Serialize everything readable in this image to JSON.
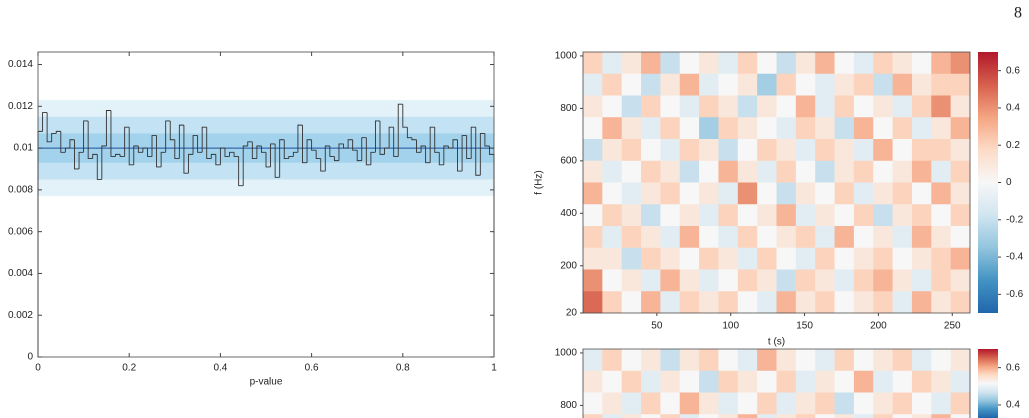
{
  "page_number": "8",
  "chart_data": [
    {
      "type": "histogram",
      "xlabel": "p-value",
      "bins": [
        0,
        0.01,
        0.02,
        0.03,
        0.04,
        0.05,
        0.06,
        0.07,
        0.08,
        0.09,
        0.1,
        0.11,
        0.12,
        0.13,
        0.14,
        0.15,
        0.16,
        0.17,
        0.18,
        0.19,
        0.2,
        0.21,
        0.22,
        0.23,
        0.24,
        0.25,
        0.26,
        0.27,
        0.28,
        0.29,
        0.3,
        0.31,
        0.32,
        0.33,
        0.34,
        0.35,
        0.36,
        0.37,
        0.38,
        0.39,
        0.4,
        0.41,
        0.42,
        0.43,
        0.44,
        0.45,
        0.46,
        0.47,
        0.48,
        0.49,
        0.5,
        0.51,
        0.52,
        0.53,
        0.54,
        0.55,
        0.56,
        0.57,
        0.58,
        0.59,
        0.6,
        0.61,
        0.62,
        0.63,
        0.64,
        0.65,
        0.66,
        0.67,
        0.68,
        0.69,
        0.7,
        0.71,
        0.72,
        0.73,
        0.74,
        0.75,
        0.76,
        0.77,
        0.78,
        0.79,
        0.8,
        0.81,
        0.82,
        0.83,
        0.84,
        0.85,
        0.86,
        0.87,
        0.88,
        0.89,
        0.9,
        0.91,
        0.92,
        0.93,
        0.94,
        0.95,
        0.96,
        0.97,
        0.98,
        0.99,
        1
      ],
      "values": [
        0.0108,
        0.0117,
        0.0103,
        0.0107,
        0.0108,
        0.0098,
        0.01,
        0.0104,
        0.009,
        0.0098,
        0.0113,
        0.0095,
        0.0097,
        0.0085,
        0.0101,
        0.0118,
        0.0096,
        0.0097,
        0.0096,
        0.011,
        0.0092,
        0.0101,
        0.0098,
        0.01,
        0.0096,
        0.0106,
        0.0091,
        0.0098,
        0.0113,
        0.0104,
        0.0095,
        0.0111,
        0.0088,
        0.0097,
        0.0106,
        0.0098,
        0.011,
        0.0095,
        0.0097,
        0.0092,
        0.01,
        0.0096,
        0.0098,
        0.0096,
        0.0082,
        0.0101,
        0.0103,
        0.0095,
        0.0101,
        0.0098,
        0.0091,
        0.0102,
        0.0086,
        0.0104,
        0.0095,
        0.0096,
        0.0098,
        0.0111,
        0.0093,
        0.0104,
        0.0099,
        0.0095,
        0.0089,
        0.0101,
        0.0096,
        0.0094,
        0.0102,
        0.01,
        0.0104,
        0.0099,
        0.0094,
        0.0105,
        0.0092,
        0.0098,
        0.0113,
        0.0097,
        0.01,
        0.011,
        0.0096,
        0.0121,
        0.011,
        0.0105,
        0.0104,
        0.0098,
        0.0101,
        0.0093,
        0.011,
        0.0098,
        0.0092,
        0.0101,
        0.01,
        0.0104,
        0.0089,
        0.0106,
        0.0095,
        0.011,
        0.0087,
        0.0107,
        0.0101,
        0.0097
      ],
      "color": "#333333",
      "xlim": [
        0,
        1
      ],
      "ylim": [
        0,
        0.0146
      ],
      "xticks": [
        0,
        0.2,
        0.4,
        0.6,
        0.8,
        1
      ],
      "yticks": [
        0,
        0.002,
        0.004,
        0.006,
        0.008,
        0.01,
        0.012,
        0.014
      ],
      "bands": [
        {
          "low": 0.0077,
          "high": 0.0123,
          "color": "#e3f1f9"
        },
        {
          "low": 0.0085,
          "high": 0.0115,
          "color": "#c3e2f3"
        },
        {
          "low": 0.0093,
          "high": 0.0107,
          "color": "#a3d3ec"
        }
      ],
      "expected": {
        "value": 0.01,
        "color": "#1f4e9c"
      }
    },
    {
      "type": "heatmap",
      "xlabel": "t (s)",
      "ylabel": "f (Hz)",
      "xlim": [
        0,
        262
      ],
      "ylim": [
        20,
        1015
      ],
      "xticks": [
        50,
        100,
        150,
        200,
        250
      ],
      "yticks": [
        20,
        200,
        400,
        600,
        800,
        1000
      ],
      "y_edges": [
        1015,
        932.1,
        849.2,
        766.3,
        683.3,
        600.4,
        517.5,
        434.6,
        351.7,
        268.8,
        185.8,
        102.9,
        20
      ],
      "clim": [
        -0.7,
        0.7
      ],
      "colorbar_ticks": [
        0.6,
        0.4,
        0.2,
        0,
        -0.2,
        -0.4,
        -0.6
      ],
      "colormap": [
        "#2166ac",
        "#4393c3",
        "#92c5de",
        "#d1e5f0",
        "#f7f7f7",
        "#fddbc7",
        "#f4a582",
        "#d6604d",
        "#b2182b"
      ],
      "z": [
        [
          0.2,
          -0.1,
          0.1,
          0.3,
          -0.2,
          0,
          0.1,
          -0.1,
          0.2,
          0,
          -0.2,
          0.1,
          0.3,
          0,
          -0.1,
          0.2,
          0.1,
          0,
          0.3,
          0.4
        ],
        [
          -0.1,
          0.2,
          0,
          -0.2,
          0.1,
          0.3,
          -0.1,
          0,
          0.1,
          -0.3,
          0.2,
          0,
          -0.1,
          0.1,
          0.2,
          -0.2,
          0.3,
          0.1,
          0.2,
          0.2
        ],
        [
          0.1,
          0,
          -0.2,
          0.2,
          0,
          -0.1,
          0.2,
          0.1,
          -0.2,
          0.1,
          0,
          0.3,
          -0.1,
          0.2,
          0,
          0.1,
          -0.1,
          0.2,
          0.4,
          0.1
        ],
        [
          0,
          0.3,
          0.1,
          -0.1,
          0.2,
          0,
          -0.3,
          0.2,
          0.1,
          0,
          -0.1,
          0.2,
          0.1,
          -0.2,
          0.3,
          0,
          0.2,
          -0.1,
          0.1,
          0.3
        ],
        [
          -0.2,
          0.1,
          0.2,
          0,
          -0.1,
          0.2,
          0.1,
          -0.2,
          0,
          0.2,
          0.1,
          -0.1,
          0.2,
          0.1,
          -0.1,
          0.3,
          0,
          0.2,
          0.2,
          0.1
        ],
        [
          0.1,
          -0.1,
          0,
          0.2,
          0.1,
          -0.2,
          0,
          0.3,
          0.1,
          -0.1,
          0.2,
          0,
          -0.2,
          0.1,
          0.2,
          0,
          0.1,
          0.3,
          -0.1,
          0.2
        ],
        [
          0.3,
          0,
          -0.1,
          0.1,
          0.2,
          0,
          0.1,
          -0.1,
          0.4,
          0,
          -0.2,
          0.1,
          0,
          0.2,
          -0.1,
          0.1,
          0.2,
          0,
          0.3,
          0.1
        ],
        [
          0,
          0.2,
          0.1,
          -0.2,
          0,
          0.1,
          -0.1,
          0.2,
          0,
          0.1,
          0.3,
          -0.1,
          0.1,
          0,
          0.2,
          -0.2,
          0.1,
          0.2,
          0,
          0.2
        ],
        [
          0.2,
          -0.1,
          0.2,
          0.1,
          -0.1,
          0.3,
          0,
          -0.1,
          0.2,
          0,
          0.1,
          0.2,
          -0.1,
          0.3,
          0,
          0.1,
          -0.1,
          0.3,
          0.1,
          0
        ],
        [
          0.1,
          0.1,
          -0.2,
          0.2,
          0.1,
          0,
          0.2,
          0.1,
          -0.1,
          0.2,
          0,
          -0.1,
          0.2,
          0,
          0.1,
          0.2,
          0,
          0.1,
          0.2,
          0.3
        ],
        [
          0.4,
          0,
          0.1,
          -0.1,
          0.3,
          0.1,
          -0.1,
          0,
          0.2,
          0.1,
          -0.2,
          0.2,
          0.1,
          -0.1,
          0.2,
          0.3,
          0.1,
          -0.1,
          0.2,
          0.1
        ],
        [
          0.5,
          0.2,
          0,
          0.3,
          -0.1,
          0.2,
          0.1,
          0.2,
          0,
          -0.1,
          0.3,
          0.1,
          0.2,
          0,
          0.1,
          0.2,
          -0.1,
          0.3,
          0.1,
          0.2
        ]
      ]
    },
    {
      "type": "heatmap",
      "xlim": [
        0,
        262
      ],
      "ylim": [
        20,
        1015
      ],
      "yticks": [
        1000,
        800
      ],
      "y_edges": [
        1015,
        932.1,
        849.2,
        766.3,
        683.3
      ],
      "clim": [
        -0.7,
        0.7
      ],
      "colorbar_ticks": [
        0.6,
        0.4
      ],
      "colormap": [
        "#2166ac",
        "#4393c3",
        "#92c5de",
        "#d1e5f0",
        "#f7f7f7",
        "#fddbc7",
        "#f4a582",
        "#d6604d",
        "#b2182b"
      ],
      "z": [
        [
          -0.1,
          0.2,
          0,
          0.1,
          -0.2,
          0.1,
          0.2,
          0,
          -0.1,
          0.3,
          0.1,
          0,
          -0.1,
          0.2,
          0,
          0.1,
          0.2,
          -0.1,
          0,
          0.1
        ],
        [
          0.1,
          0,
          0.2,
          -0.1,
          0.1,
          0,
          -0.2,
          0.2,
          0.1,
          0,
          0.2,
          -0.1,
          0.1,
          0,
          0.3,
          -0.1,
          0,
          0.2,
          0.1,
          -0.1
        ],
        [
          0,
          0.1,
          -0.1,
          0.2,
          0,
          0.3,
          0.1,
          -0.1,
          0,
          0.2,
          -0.1,
          0.1,
          0.2,
          -0.2,
          0,
          0.1,
          0.2,
          0,
          -0.1,
          0.2
        ],
        [
          0.2,
          -0.1,
          0.1,
          0,
          0.2,
          -0.1,
          0,
          0.1,
          0.3,
          -0.1,
          0.1,
          0.2,
          0,
          0.1,
          -0.1,
          0.2,
          0,
          0.1,
          0.3,
          0
        ]
      ]
    }
  ]
}
